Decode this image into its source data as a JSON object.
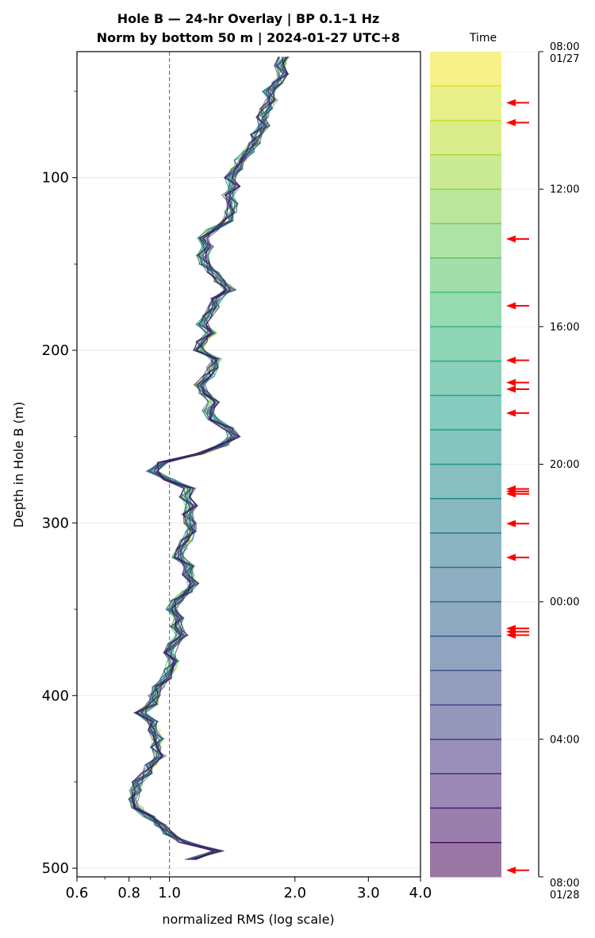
{
  "chart_data": {
    "type": "line",
    "title_line1": "Hole B — 24-hr Overlay  |  BP 0.1–1 Hz",
    "title_line2": "Norm by bottom 50 m  |  2024-01-27 UTC+8",
    "xlabel": "normalized RMS  (log scale)",
    "ylabel": "Depth in Hole B (m)",
    "xscale": "log",
    "xlim": [
      0.6,
      4.0
    ],
    "ylim": [
      505,
      27
    ],
    "x_ticks": [
      0.6,
      0.8,
      1.0,
      2.0,
      3.0,
      4.0
    ],
    "x_tick_labels": [
      "0.6",
      "0.8",
      "1.0",
      "2.0",
      "3.0",
      "4.0"
    ],
    "y_ticks": [
      100,
      200,
      300,
      400,
      500
    ],
    "y_tick_labels": [
      "100",
      "200",
      "300",
      "400",
      "500"
    ],
    "grid": true,
    "reference_line": {
      "x": 1.0,
      "style": "dashed"
    },
    "profile_depths": [
      30,
      35,
      40,
      45,
      50,
      55,
      60,
      65,
      70,
      75,
      80,
      85,
      90,
      95,
      100,
      105,
      110,
      115,
      120,
      125,
      130,
      135,
      140,
      145,
      150,
      155,
      160,
      165,
      170,
      175,
      180,
      185,
      190,
      195,
      200,
      205,
      210,
      215,
      220,
      225,
      230,
      235,
      240,
      245,
      250,
      255,
      260,
      265,
      270,
      275,
      280,
      285,
      290,
      295,
      300,
      305,
      310,
      315,
      320,
      325,
      330,
      335,
      340,
      345,
      350,
      355,
      360,
      365,
      370,
      375,
      380,
      385,
      390,
      395,
      400,
      405,
      410,
      415,
      420,
      425,
      430,
      435,
      440,
      445,
      450,
      455,
      460,
      465,
      470,
      475,
      480,
      485,
      490,
      495
    ],
    "profile_rms": [
      1.88,
      1.84,
      1.87,
      1.82,
      1.73,
      1.76,
      1.71,
      1.67,
      1.69,
      1.62,
      1.6,
      1.55,
      1.48,
      1.45,
      1.4,
      1.43,
      1.38,
      1.42,
      1.4,
      1.38,
      1.27,
      1.2,
      1.24,
      1.2,
      1.21,
      1.27,
      1.32,
      1.4,
      1.3,
      1.28,
      1.24,
      1.2,
      1.26,
      1.2,
      1.18,
      1.29,
      1.27,
      1.24,
      1.18,
      1.21,
      1.28,
      1.24,
      1.27,
      1.38,
      1.43,
      1.34,
      1.18,
      0.96,
      0.91,
      1.0,
      1.12,
      1.09,
      1.13,
      1.1,
      1.12,
      1.13,
      1.1,
      1.07,
      1.05,
      1.11,
      1.11,
      1.14,
      1.1,
      1.04,
      1.01,
      1.06,
      1.04,
      1.07,
      1.02,
      1.0,
      1.02,
      1.0,
      0.98,
      0.94,
      0.92,
      0.91,
      0.85,
      0.91,
      0.92,
      0.94,
      0.93,
      0.95,
      0.9,
      0.88,
      0.84,
      0.83,
      0.82,
      0.84,
      0.89,
      0.95,
      1.0,
      1.09,
      1.31,
      1.12
    ],
    "n_series": 24,
    "colorbar": {
      "title": "Time",
      "tick_labels": [
        "08:00\n01/27",
        "12:00",
        "16:00",
        "20:00",
        "00:00",
        "04:00",
        "08:00\n01/28"
      ],
      "tick_fractions": [
        0,
        0.1667,
        0.3333,
        0.5,
        0.6667,
        0.8333,
        1.0
      ],
      "arrow_fractions": [
        0.062,
        0.086,
        0.227,
        0.308,
        0.374,
        0.401,
        0.409,
        0.438,
        0.53,
        0.533,
        0.536,
        0.572,
        0.613,
        0.699,
        0.703,
        0.707,
        0.992
      ],
      "arrow_color": "#ff0000"
    }
  }
}
